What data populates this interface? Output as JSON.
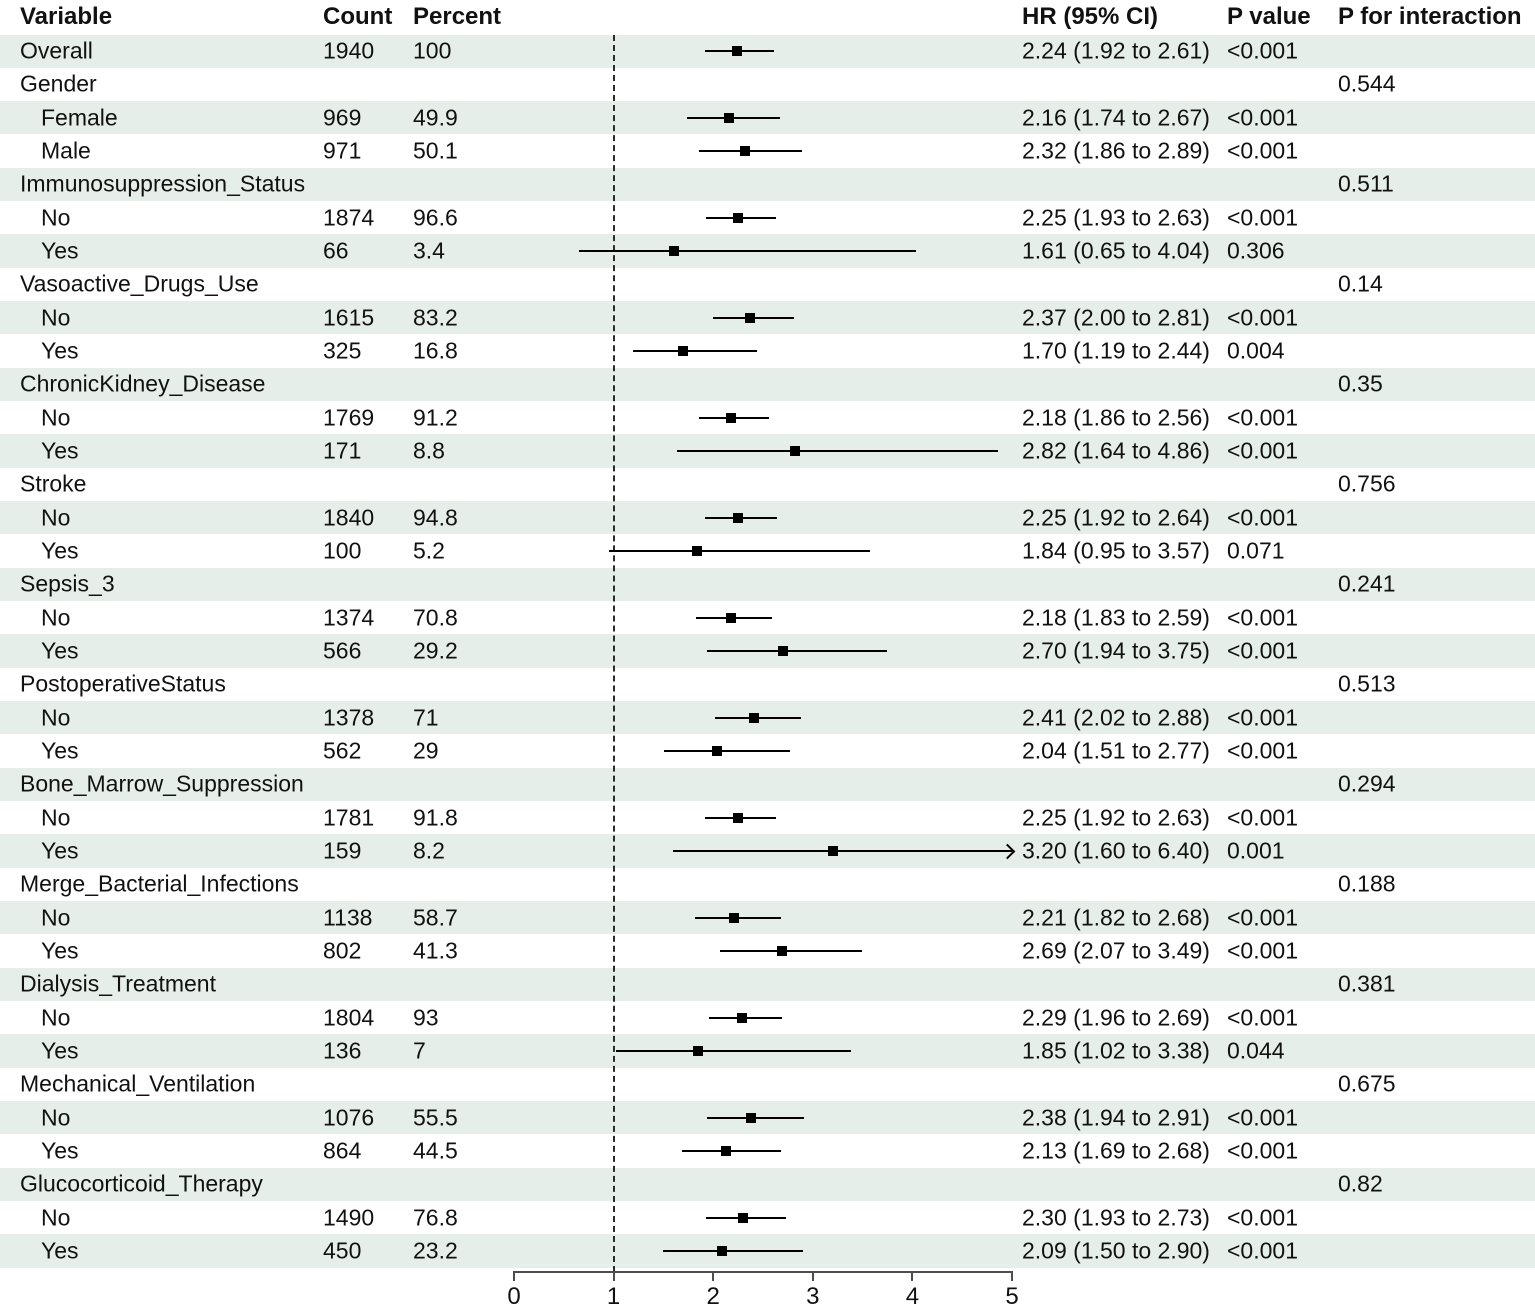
{
  "columns": {
    "variable": "Variable",
    "count": "Count",
    "percent": "Percent",
    "hr_ci": "HR (95% CI)",
    "p_value": "P value",
    "p_interaction": "P for interaction"
  },
  "chart_data": {
    "type": "forest",
    "x_axis": {
      "ticks": [
        "0",
        "1",
        "2",
        "3",
        "4",
        "5"
      ],
      "range": [
        0,
        5
      ],
      "reference_line": 1
    },
    "colors": {
      "stripe": "#e6eeea",
      "marker": "#000000",
      "ci_line": "#000000",
      "axis": "#4d4d4d"
    },
    "rows": [
      {
        "label": "Overall",
        "indent": false,
        "count": "1940",
        "percent": "100",
        "hr": 2.24,
        "lo": 1.92,
        "hi": 2.61,
        "hr_text": "2.24 (1.92 to 2.61)",
        "p": "<0.001",
        "p_int": "",
        "clip": false
      },
      {
        "label": "Gender",
        "indent": false,
        "count": "",
        "percent": "",
        "hr": null,
        "lo": null,
        "hi": null,
        "hr_text": "",
        "p": "",
        "p_int": "0.544",
        "clip": false
      },
      {
        "label": "Female",
        "indent": true,
        "count": "969",
        "percent": "49.9",
        "hr": 2.16,
        "lo": 1.74,
        "hi": 2.67,
        "hr_text": "2.16 (1.74 to 2.67)",
        "p": "<0.001",
        "p_int": "",
        "clip": false
      },
      {
        "label": "Male",
        "indent": true,
        "count": "971",
        "percent": "50.1",
        "hr": 2.32,
        "lo": 1.86,
        "hi": 2.89,
        "hr_text": "2.32 (1.86 to 2.89)",
        "p": "<0.001",
        "p_int": "",
        "clip": false
      },
      {
        "label": "Immunosuppression_Status",
        "indent": false,
        "count": "",
        "percent": "",
        "hr": null,
        "lo": null,
        "hi": null,
        "hr_text": "",
        "p": "",
        "p_int": "0.511",
        "clip": false
      },
      {
        "label": "No",
        "indent": true,
        "count": "1874",
        "percent": "96.6",
        "hr": 2.25,
        "lo": 1.93,
        "hi": 2.63,
        "hr_text": "2.25 (1.93 to 2.63)",
        "p": "<0.001",
        "p_int": "",
        "clip": false
      },
      {
        "label": "Yes",
        "indent": true,
        "count": "66",
        "percent": "3.4",
        "hr": 1.61,
        "lo": 0.65,
        "hi": 4.04,
        "hr_text": "1.61 (0.65 to 4.04)",
        "p": "0.306",
        "p_int": "",
        "clip": false
      },
      {
        "label": "Vasoactive_Drugs_Use",
        "indent": false,
        "count": "",
        "percent": "",
        "hr": null,
        "lo": null,
        "hi": null,
        "hr_text": "",
        "p": "",
        "p_int": "0.14",
        "clip": false
      },
      {
        "label": "No",
        "indent": true,
        "count": "1615",
        "percent": "83.2",
        "hr": 2.37,
        "lo": 2.0,
        "hi": 2.81,
        "hr_text": "2.37 (2.00 to 2.81)",
        "p": "<0.001",
        "p_int": "",
        "clip": false
      },
      {
        "label": "Yes",
        "indent": true,
        "count": "325",
        "percent": "16.8",
        "hr": 1.7,
        "lo": 1.19,
        "hi": 2.44,
        "hr_text": "1.70 (1.19 to 2.44)",
        "p": "0.004",
        "p_int": "",
        "clip": false
      },
      {
        "label": "ChronicKidney_Disease",
        "indent": false,
        "count": "",
        "percent": "",
        "hr": null,
        "lo": null,
        "hi": null,
        "hr_text": "",
        "p": "",
        "p_int": "0.35",
        "clip": false
      },
      {
        "label": "No",
        "indent": true,
        "count": "1769",
        "percent": "91.2",
        "hr": 2.18,
        "lo": 1.86,
        "hi": 2.56,
        "hr_text": "2.18 (1.86 to 2.56)",
        "p": "<0.001",
        "p_int": "",
        "clip": false
      },
      {
        "label": "Yes",
        "indent": true,
        "count": "171",
        "percent": "8.8",
        "hr": 2.82,
        "lo": 1.64,
        "hi": 4.86,
        "hr_text": "2.82 (1.64 to 4.86)",
        "p": "<0.001",
        "p_int": "",
        "clip": false
      },
      {
        "label": "Stroke",
        "indent": false,
        "count": "",
        "percent": "",
        "hr": null,
        "lo": null,
        "hi": null,
        "hr_text": "",
        "p": "",
        "p_int": "0.756",
        "clip": false
      },
      {
        "label": "No",
        "indent": true,
        "count": "1840",
        "percent": "94.8",
        "hr": 2.25,
        "lo": 1.92,
        "hi": 2.64,
        "hr_text": "2.25 (1.92 to 2.64)",
        "p": "<0.001",
        "p_int": "",
        "clip": false
      },
      {
        "label": "Yes",
        "indent": true,
        "count": "100",
        "percent": "5.2",
        "hr": 1.84,
        "lo": 0.95,
        "hi": 3.57,
        "hr_text": "1.84 (0.95 to 3.57)",
        "p": "0.071",
        "p_int": "",
        "clip": false
      },
      {
        "label": "Sepsis_3",
        "indent": false,
        "count": "",
        "percent": "",
        "hr": null,
        "lo": null,
        "hi": null,
        "hr_text": "",
        "p": "",
        "p_int": "0.241",
        "clip": false
      },
      {
        "label": "No",
        "indent": true,
        "count": "1374",
        "percent": "70.8",
        "hr": 2.18,
        "lo": 1.83,
        "hi": 2.59,
        "hr_text": "2.18 (1.83 to 2.59)",
        "p": "<0.001",
        "p_int": "",
        "clip": false
      },
      {
        "label": "Yes",
        "indent": true,
        "count": "566",
        "percent": "29.2",
        "hr": 2.7,
        "lo": 1.94,
        "hi": 3.75,
        "hr_text": "2.70 (1.94 to 3.75)",
        "p": "<0.001",
        "p_int": "",
        "clip": false
      },
      {
        "label": "PostoperativeStatus",
        "indent": false,
        "count": "",
        "percent": "",
        "hr": null,
        "lo": null,
        "hi": null,
        "hr_text": "",
        "p": "",
        "p_int": "0.513",
        "clip": false
      },
      {
        "label": "No",
        "indent": true,
        "count": "1378",
        "percent": "71",
        "hr": 2.41,
        "lo": 2.02,
        "hi": 2.88,
        "hr_text": "2.41 (2.02 to 2.88)",
        "p": "<0.001",
        "p_int": "",
        "clip": false
      },
      {
        "label": "Yes",
        "indent": true,
        "count": "562",
        "percent": "29",
        "hr": 2.04,
        "lo": 1.51,
        "hi": 2.77,
        "hr_text": "2.04 (1.51 to 2.77)",
        "p": "<0.001",
        "p_int": "",
        "clip": false
      },
      {
        "label": "Bone_Marrow_Suppression",
        "indent": false,
        "count": "",
        "percent": "",
        "hr": null,
        "lo": null,
        "hi": null,
        "hr_text": "",
        "p": "",
        "p_int": "0.294",
        "clip": false
      },
      {
        "label": "No",
        "indent": true,
        "count": "1781",
        "percent": "91.8",
        "hr": 2.25,
        "lo": 1.92,
        "hi": 2.63,
        "hr_text": "2.25 (1.92 to 2.63)",
        "p": "<0.001",
        "p_int": "",
        "clip": false
      },
      {
        "label": "Yes",
        "indent": true,
        "count": "159",
        "percent": "8.2",
        "hr": 3.2,
        "lo": 1.6,
        "hi": 6.4,
        "hr_text": "3.20 (1.60 to 6.40)",
        "p": "0.001",
        "p_int": "",
        "clip": true
      },
      {
        "label": "Merge_Bacterial_Infections",
        "indent": false,
        "count": "",
        "percent": "",
        "hr": null,
        "lo": null,
        "hi": null,
        "hr_text": "",
        "p": "",
        "p_int": "0.188",
        "clip": false
      },
      {
        "label": "No",
        "indent": true,
        "count": "1138",
        "percent": "58.7",
        "hr": 2.21,
        "lo": 1.82,
        "hi": 2.68,
        "hr_text": "2.21 (1.82 to 2.68)",
        "p": "<0.001",
        "p_int": "",
        "clip": false
      },
      {
        "label": "Yes",
        "indent": true,
        "count": "802",
        "percent": "41.3",
        "hr": 2.69,
        "lo": 2.07,
        "hi": 3.49,
        "hr_text": "2.69 (2.07 to 3.49)",
        "p": "<0.001",
        "p_int": "",
        "clip": false
      },
      {
        "label": "Dialysis_Treatment",
        "indent": false,
        "count": "",
        "percent": "",
        "hr": null,
        "lo": null,
        "hi": null,
        "hr_text": "",
        "p": "",
        "p_int": "0.381",
        "clip": false
      },
      {
        "label": "No",
        "indent": true,
        "count": "1804",
        "percent": "93",
        "hr": 2.29,
        "lo": 1.96,
        "hi": 2.69,
        "hr_text": "2.29 (1.96 to 2.69)",
        "p": "<0.001",
        "p_int": "",
        "clip": false
      },
      {
        "label": "Yes",
        "indent": true,
        "count": "136",
        "percent": "7",
        "hr": 1.85,
        "lo": 1.02,
        "hi": 3.38,
        "hr_text": "1.85 (1.02 to 3.38)",
        "p": "0.044",
        "p_int": "",
        "clip": false
      },
      {
        "label": "Mechanical_Ventilation",
        "indent": false,
        "count": "",
        "percent": "",
        "hr": null,
        "lo": null,
        "hi": null,
        "hr_text": "",
        "p": "",
        "p_int": "0.675",
        "clip": false
      },
      {
        "label": "No",
        "indent": true,
        "count": "1076",
        "percent": "55.5",
        "hr": 2.38,
        "lo": 1.94,
        "hi": 2.91,
        "hr_text": "2.38 (1.94 to 2.91)",
        "p": "<0.001",
        "p_int": "",
        "clip": false
      },
      {
        "label": "Yes",
        "indent": true,
        "count": "864",
        "percent": "44.5",
        "hr": 2.13,
        "lo": 1.69,
        "hi": 2.68,
        "hr_text": "2.13 (1.69 to 2.68)",
        "p": "<0.001",
        "p_int": "",
        "clip": false
      },
      {
        "label": "Glucocorticoid_Therapy",
        "indent": false,
        "count": "",
        "percent": "",
        "hr": null,
        "lo": null,
        "hi": null,
        "hr_text": "",
        "p": "",
        "p_int": "0.82",
        "clip": false
      },
      {
        "label": "No",
        "indent": true,
        "count": "1490",
        "percent": "76.8",
        "hr": 2.3,
        "lo": 1.93,
        "hi": 2.73,
        "hr_text": "2.30 (1.93 to 2.73)",
        "p": "<0.001",
        "p_int": "",
        "clip": false
      },
      {
        "label": "Yes",
        "indent": true,
        "count": "450",
        "percent": "23.2",
        "hr": 2.09,
        "lo": 1.5,
        "hi": 2.9,
        "hr_text": "2.09 (1.50 to 2.90)",
        "p": "<0.001",
        "p_int": "",
        "clip": false
      }
    ]
  }
}
